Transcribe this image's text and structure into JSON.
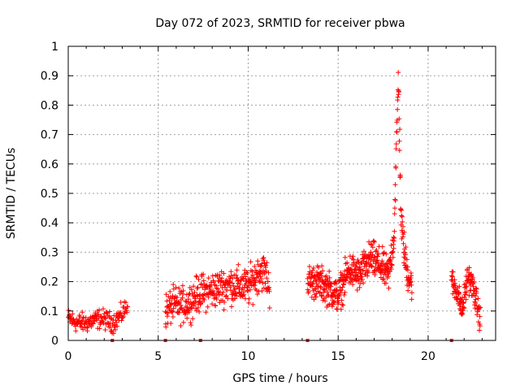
{
  "chart_data": {
    "type": "scatter",
    "title": "Day 072 of 2023, SRMTID for receiver pbwa",
    "xlabel": "GPS time / hours",
    "ylabel": "SRMTID / TECUs",
    "xlim": [
      0,
      23.75
    ],
    "ylim": [
      0,
      1
    ],
    "x_ticks": [
      0,
      5,
      10,
      15,
      20
    ],
    "y_ticks": [
      0,
      0.1,
      0.2,
      0.3,
      0.4,
      0.5,
      0.6,
      0.7,
      0.8,
      0.9,
      1
    ],
    "x_tick_labels": [
      "0",
      "5",
      "10",
      "15",
      "20"
    ],
    "y_tick_labels": [
      "0",
      "0.1",
      "0.2",
      "0.3",
      "0.4",
      "0.5",
      "0.6",
      "0.7",
      "0.8",
      "0.9",
      "1"
    ],
    "grid": true,
    "marker": "+",
    "color": "#ff0000",
    "gap_markers_x": [
      2.45,
      5.4,
      7.35,
      13.3,
      21.3
    ],
    "segments": [
      {
        "name": "segment-1",
        "x_start": 0.0,
        "x_end": 3.3,
        "step": 0.02,
        "profile": [
          [
            0.0,
            0.075
          ],
          [
            0.5,
            0.06
          ],
          [
            1.0,
            0.06
          ],
          [
            1.8,
            0.075
          ],
          [
            2.5,
            0.06
          ],
          [
            3.0,
            0.09
          ],
          [
            3.3,
            0.12
          ]
        ],
        "noise": 0.022
      },
      {
        "name": "segment-2",
        "x_start": 5.4,
        "x_end": 11.2,
        "step": 0.015,
        "profile": [
          [
            5.4,
            0.1
          ],
          [
            5.8,
            0.12
          ],
          [
            6.5,
            0.12
          ],
          [
            7.3,
            0.16
          ],
          [
            8.0,
            0.17
          ],
          [
            9.0,
            0.19
          ],
          [
            10.0,
            0.18
          ],
          [
            10.7,
            0.24
          ],
          [
            11.0,
            0.22
          ],
          [
            11.2,
            0.17
          ]
        ],
        "noise": 0.038
      },
      {
        "name": "segment-3",
        "x_start": 13.3,
        "x_end": 19.1,
        "step": 0.012,
        "profile": [
          [
            13.3,
            0.2
          ],
          [
            13.8,
            0.2
          ],
          [
            14.4,
            0.18
          ],
          [
            15.0,
            0.15
          ],
          [
            15.6,
            0.24
          ],
          [
            16.2,
            0.22
          ],
          [
            16.8,
            0.28
          ],
          [
            17.4,
            0.25
          ],
          [
            17.8,
            0.22
          ],
          [
            18.1,
            0.35
          ],
          [
            18.35,
            0.9
          ],
          [
            18.5,
            0.4
          ],
          [
            18.8,
            0.24
          ],
          [
            19.1,
            0.19
          ]
        ],
        "noise": 0.035
      },
      {
        "name": "segment-4",
        "x_start": 21.3,
        "x_end": 22.9,
        "step": 0.012,
        "profile": [
          [
            21.3,
            0.2
          ],
          [
            21.6,
            0.17
          ],
          [
            21.9,
            0.1
          ],
          [
            22.2,
            0.22
          ],
          [
            22.5,
            0.18
          ],
          [
            22.9,
            0.07
          ]
        ],
        "noise": 0.028
      }
    ]
  }
}
